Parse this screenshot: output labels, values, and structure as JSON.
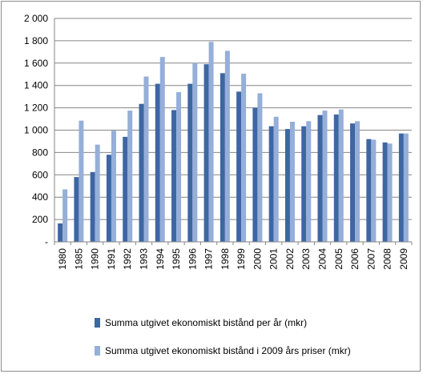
{
  "chart_data": {
    "type": "bar",
    "categories": [
      "1980",
      "1985",
      "1990",
      "1991",
      "1992",
      "1993",
      "1994",
      "1995",
      "1996",
      "1997",
      "1998",
      "1999",
      "2000",
      "2001",
      "2002",
      "2003",
      "2004",
      "2005",
      "2006",
      "2007",
      "2008",
      "2009"
    ],
    "series": [
      {
        "name": "Summa utgivet ekonomiskt bistånd per år (mkr)",
        "color": "#3e66a3",
        "values": [
          165,
          580,
          625,
          780,
          940,
          1235,
          1415,
          1180,
          1415,
          1590,
          1510,
          1345,
          1200,
          1035,
          1010,
          1035,
          1135,
          1140,
          1060,
          920,
          890,
          970
        ]
      },
      {
        "name": "Summa utgivet ekonomiskt bistånd i 2009 års priser (mkr)",
        "color": "#95afd9",
        "values": [
          470,
          1085,
          870,
          995,
          1175,
          1480,
          1655,
          1340,
          1600,
          1790,
          1710,
          1505,
          1330,
          1120,
          1075,
          1080,
          1175,
          1185,
          1080,
          915,
          880,
          970
        ]
      }
    ],
    "ylim": [
      0,
      2000
    ],
    "yticks": [
      0,
      200,
      400,
      600,
      800,
      1000,
      1200,
      1400,
      1600,
      1800,
      2000
    ],
    "ytick_labels": [
      "-",
      "200",
      "400",
      "600",
      "800",
      "1 000",
      "1 200",
      "1 400",
      "1 600",
      "1 800",
      "2 000"
    ],
    "grid": true,
    "legend_position": "bottom"
  }
}
